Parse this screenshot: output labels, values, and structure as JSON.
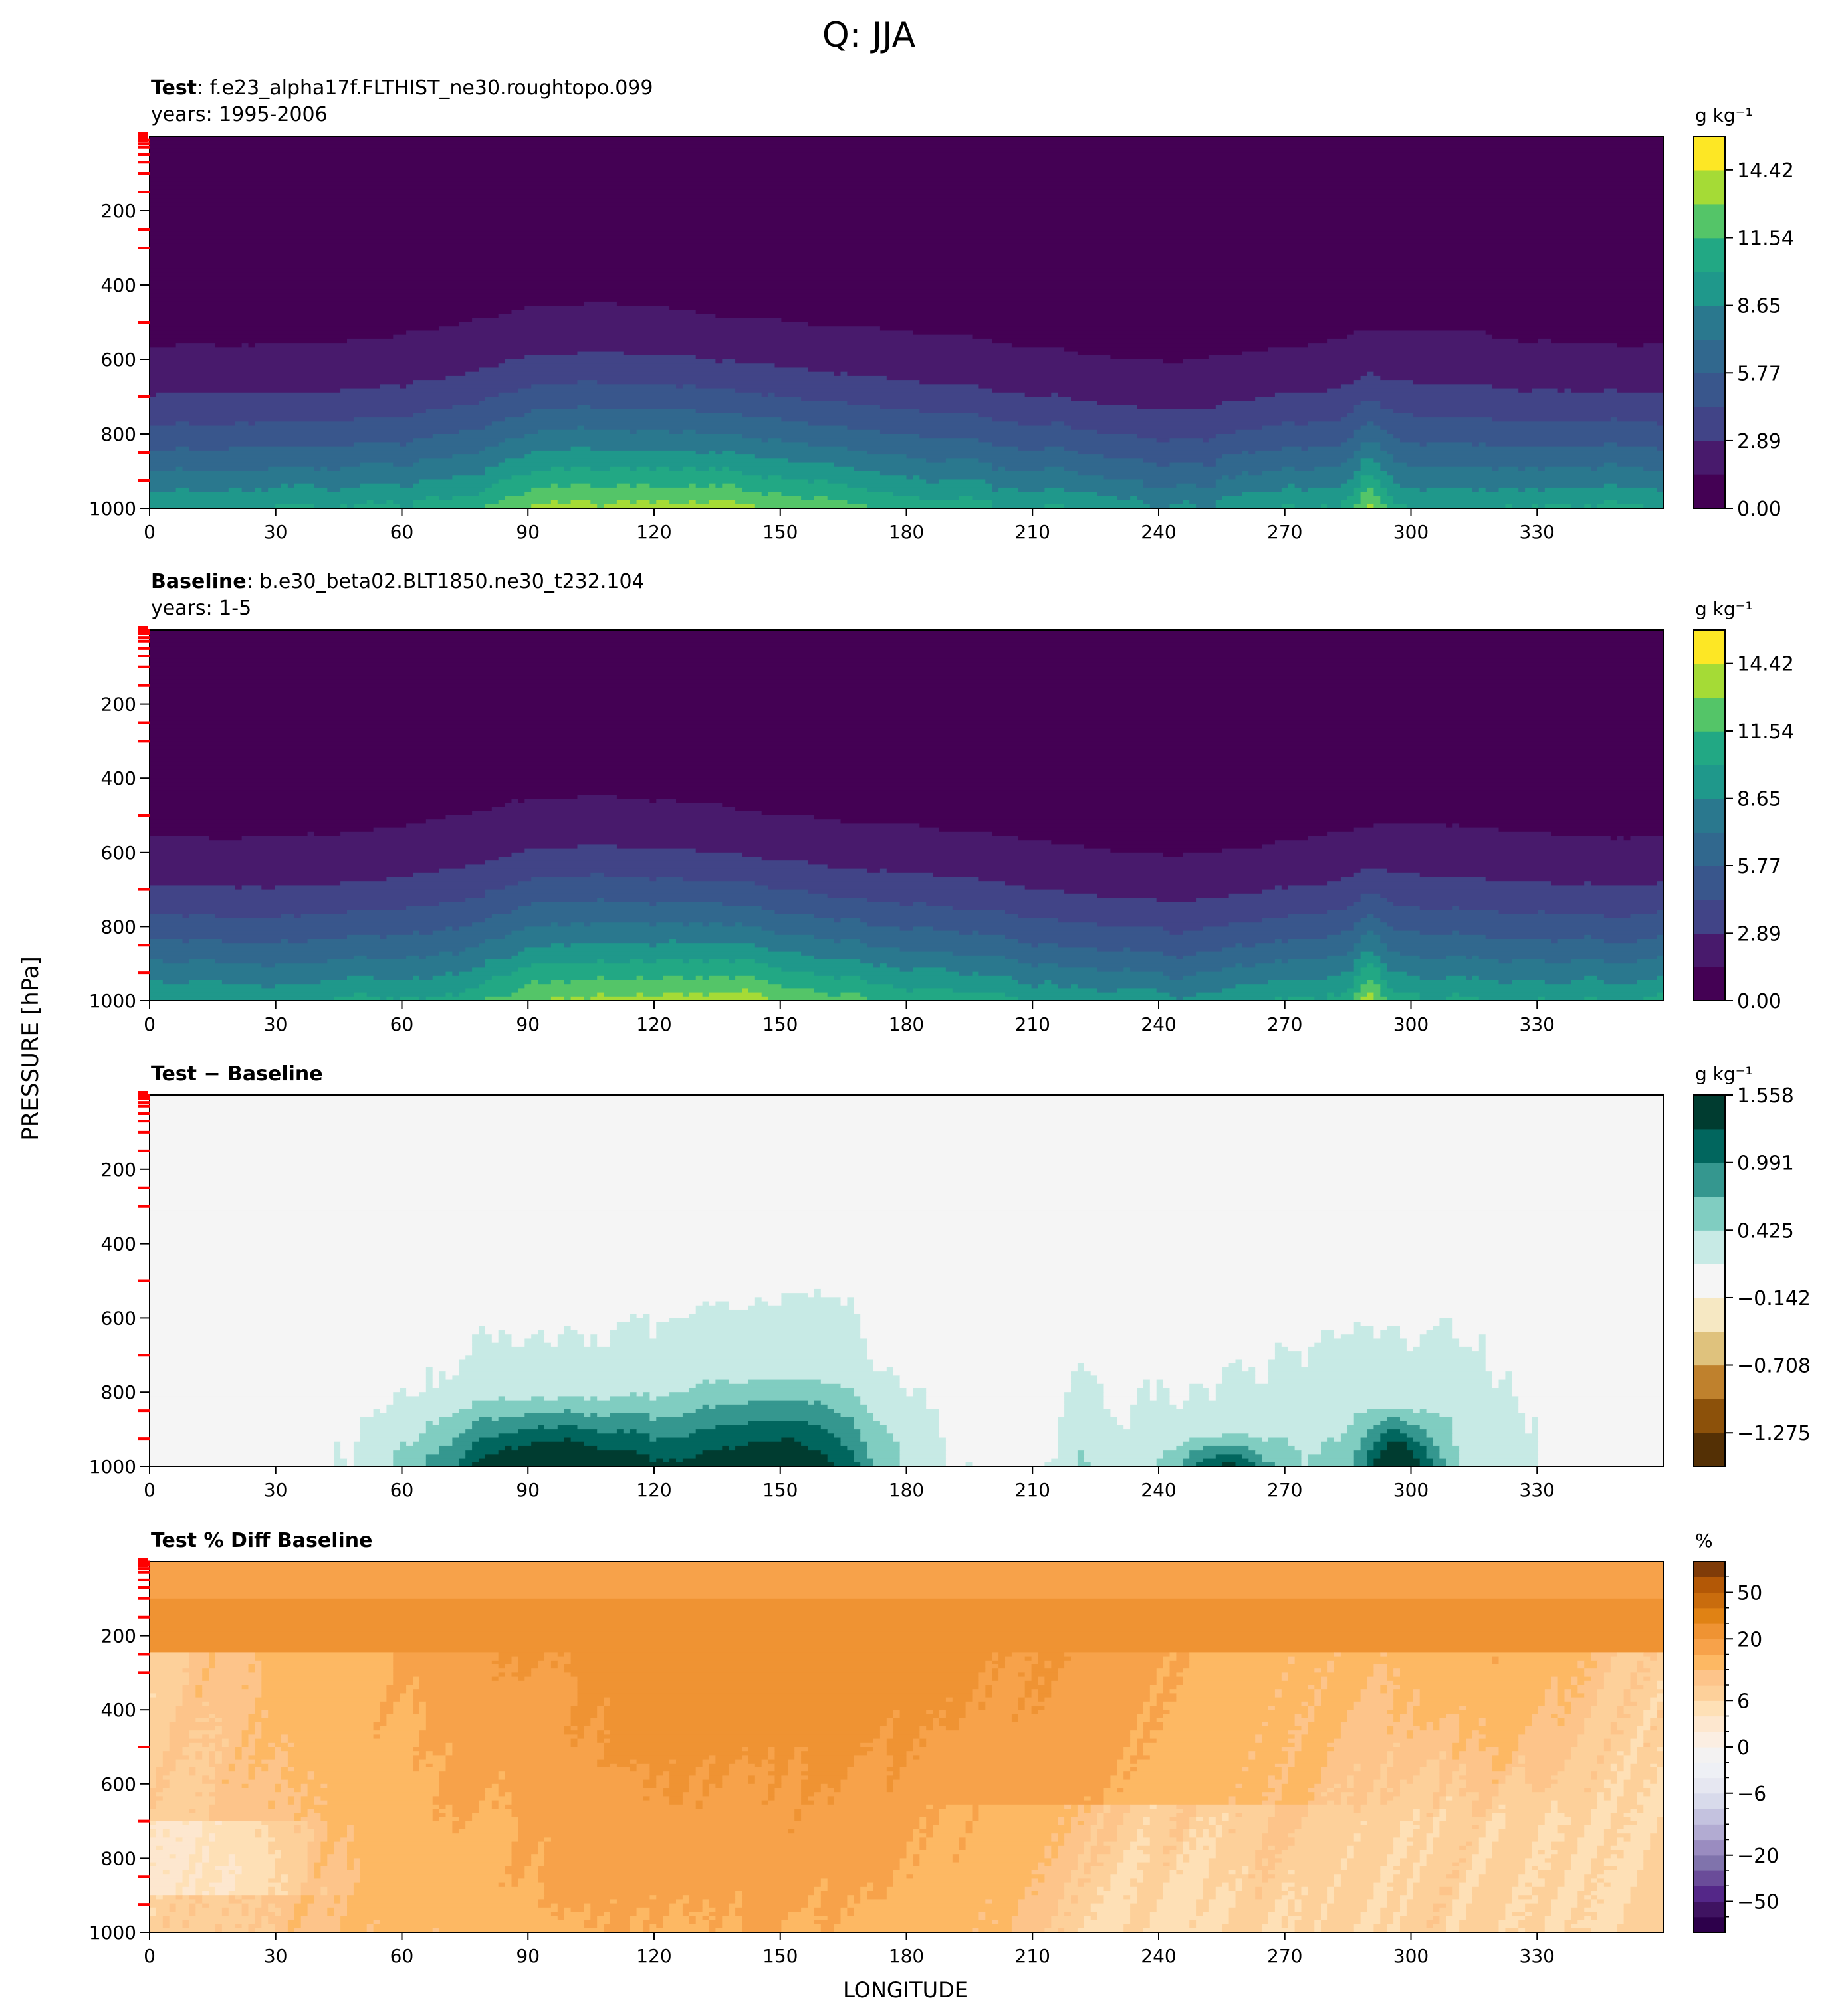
{
  "figure": {
    "title": "Q: JJA",
    "ylabel": "PRESSURE [hPa]",
    "xlabel": "LONGITUDE"
  },
  "colors": {
    "marker_red": "#ff0000",
    "viridis": [
      "#440154",
      "#481a6c",
      "#472f7d",
      "#414487",
      "#39568c",
      "#31688e",
      "#2a788e",
      "#23888e",
      "#1f988b",
      "#22a884",
      "#35b779",
      "#54c568",
      "#7ad151",
      "#a5db36",
      "#d2e21b",
      "#fde725"
    ],
    "bwr_teal": [
      "#003c30",
      "#01665e",
      "#35978f",
      "#80cdc1",
      "#c7eae5",
      "#f5f5f5",
      "#f6e8c3",
      "#dfc27d",
      "#bf812d",
      "#8c510a",
      "#543005"
    ],
    "puor": [
      "#2d004b",
      "#542788",
      "#8073ac",
      "#b2abd2",
      "#d8daeb",
      "#f7f7f7",
      "#fee0b6",
      "#fdb863",
      "#e08214",
      "#b35806",
      "#7f3b08"
    ]
  },
  "chart_data": [
    {
      "type": "heatmap",
      "panel_label": "Test",
      "case": ": f.e23_alpha17f.FLTHIST_ne30.roughtopo.099",
      "years": "years: 1995-2006",
      "xlim": [
        0,
        360
      ],
      "ylim": [
        1000,
        0
      ],
      "xticks": [
        "0",
        "30",
        "60",
        "90",
        "120",
        "150",
        "180",
        "210",
        "240",
        "270",
        "300",
        "330"
      ],
      "yticks": [
        "200",
        "400",
        "600",
        "800",
        "1000"
      ],
      "colorbar": {
        "unit": "g kg⁻¹",
        "tick_labels": [
          "14.42",
          "11.54",
          "8.65",
          "5.77",
          "2.89",
          "0.00"
        ],
        "range": [
          0,
          15.86
        ],
        "levels": 11
      },
      "field": "moisture_humid",
      "red_ticks_hPa": [
        10,
        20,
        30,
        50,
        70,
        100,
        150,
        250,
        300,
        500,
        700,
        850,
        925
      ]
    },
    {
      "type": "heatmap",
      "panel_label": "Baseline",
      "case": ": b.e30_beta02.BLT1850.ne30_t232.104",
      "years": "years: 1-5",
      "xlim": [
        0,
        360
      ],
      "ylim": [
        1000,
        0
      ],
      "xticks": [
        "0",
        "30",
        "60",
        "90",
        "120",
        "150",
        "180",
        "210",
        "240",
        "270",
        "300",
        "330"
      ],
      "yticks": [
        "200",
        "400",
        "600",
        "800",
        "1000"
      ],
      "colorbar": {
        "unit": "g kg⁻¹",
        "tick_labels": [
          "14.42",
          "11.54",
          "8.65",
          "5.77",
          "2.89",
          "0.00"
        ],
        "range": [
          0,
          15.86
        ],
        "levels": 11
      },
      "field": "moisture_base",
      "red_ticks_hPa": [
        1,
        3,
        5,
        10,
        20,
        30,
        50,
        70,
        100,
        150,
        250,
        300,
        500,
        700,
        850,
        925
      ]
    },
    {
      "type": "heatmap",
      "panel_label": "Test − Baseline",
      "xlim": [
        0,
        360
      ],
      "ylim": [
        1000,
        0
      ],
      "xticks": [
        "0",
        "30",
        "60",
        "90",
        "120",
        "150",
        "180",
        "210",
        "240",
        "270",
        "300",
        "330"
      ],
      "yticks": [
        "200",
        "400",
        "600",
        "800",
        "1000"
      ],
      "colorbar": {
        "unit": "g kg⁻¹",
        "tick_labels": [
          "1.558",
          "0.991",
          "0.425",
          "−0.142",
          "−0.708",
          "−1.275"
        ],
        "range": [
          -1.558,
          1.558
        ],
        "levels": 11
      },
      "field": "difference",
      "red_ticks_hPa": [
        1,
        3,
        5,
        10,
        20,
        30,
        50,
        70,
        100,
        150,
        250,
        300,
        500,
        700,
        850,
        925
      ]
    },
    {
      "type": "heatmap",
      "panel_label": "Test % Diff Baseline",
      "xlim": [
        0,
        360
      ],
      "ylim": [
        1000,
        0
      ],
      "xticks": [
        "0",
        "30",
        "60",
        "90",
        "120",
        "150",
        "180",
        "210",
        "240",
        "270",
        "300",
        "330"
      ],
      "yticks": [
        "200",
        "400",
        "600",
        "800",
        "1000"
      ],
      "colorbar": {
        "unit": "%",
        "tick_labels": [
          "50",
          "20",
          "6",
          "0",
          "−6",
          "−20",
          "−50"
        ],
        "range": [
          -100,
          100
        ],
        "levels": 21
      },
      "field": "percent",
      "red_ticks_hPa": [
        1,
        3,
        5,
        10,
        20,
        30,
        50,
        70,
        100,
        150,
        250,
        300,
        500,
        700,
        850,
        925
      ]
    }
  ]
}
